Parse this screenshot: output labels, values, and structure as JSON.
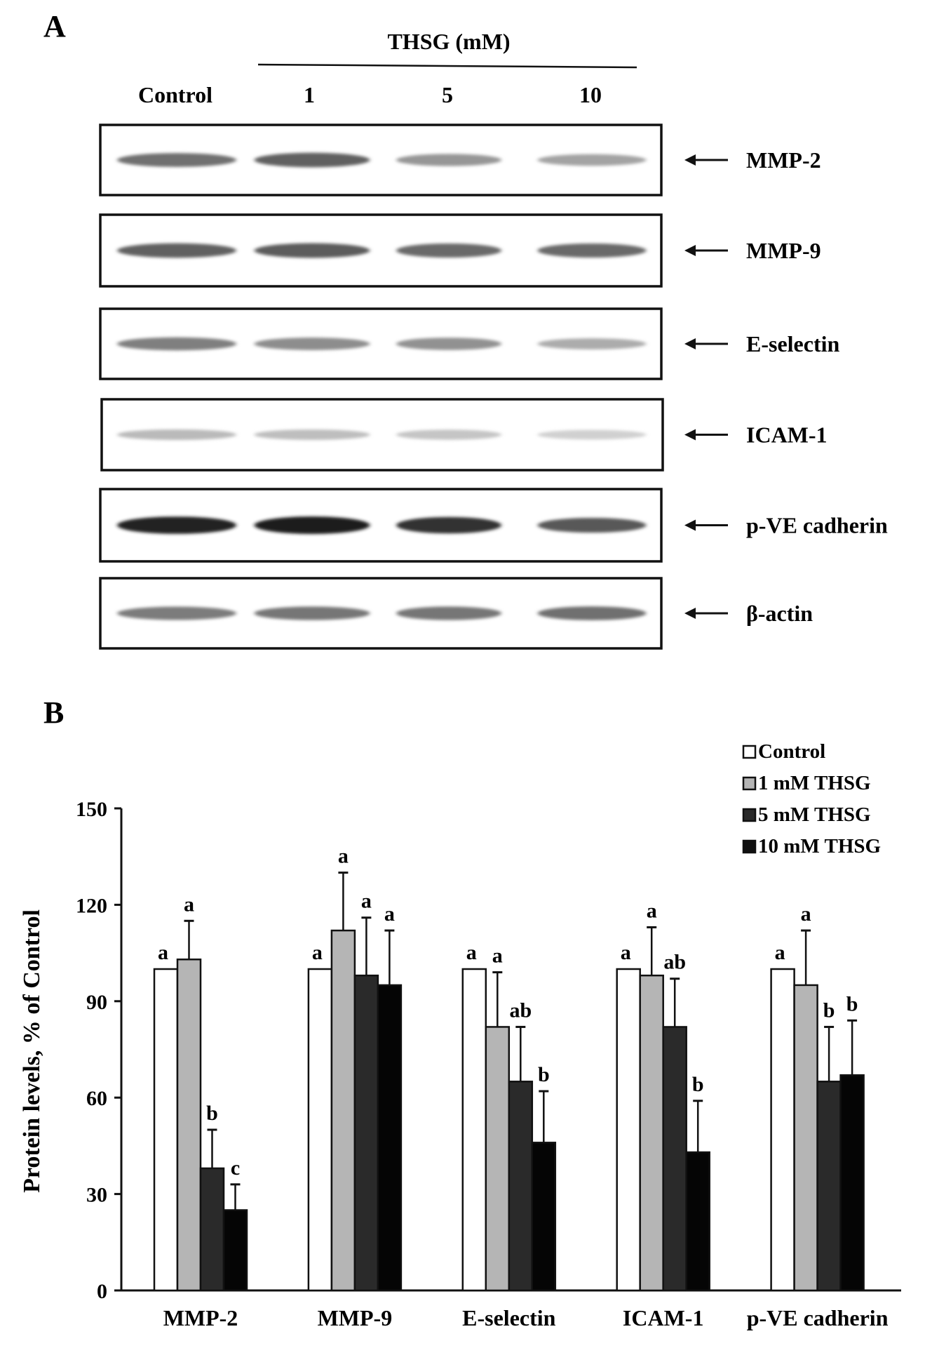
{
  "panel_a": {
    "label": "A",
    "treatment_label": "THSG (mM)",
    "lanes": [
      "Control",
      "1",
      "5",
      "10"
    ],
    "blots": [
      {
        "name": "MMP-2",
        "intensities": [
          0.55,
          0.62,
          0.38,
          0.32
        ]
      },
      {
        "name": "MMP-9",
        "intensities": [
          0.62,
          0.64,
          0.58,
          0.58
        ]
      },
      {
        "name": "E-selectin",
        "intensities": [
          0.48,
          0.42,
          0.4,
          0.28
        ]
      },
      {
        "name": "ICAM-1",
        "intensities": [
          0.22,
          0.2,
          0.17,
          0.12
        ]
      },
      {
        "name": "p-VE cadherin",
        "intensities": [
          0.9,
          0.92,
          0.82,
          0.65
        ]
      },
      {
        "name": "β-actin",
        "intensities": [
          0.5,
          0.52,
          0.52,
          0.55
        ]
      }
    ]
  },
  "panel_b": {
    "label": "B"
  },
  "chart_data": {
    "type": "bar",
    "title": "",
    "xlabel": "",
    "ylabel": "Protein levels, % of Control",
    "ylim": [
      0,
      150
    ],
    "yticks": [
      0,
      30,
      60,
      90,
      120,
      150
    ],
    "categories": [
      "MMP-2",
      "MMP-9",
      "E-selectin",
      "ICAM-1",
      "p-VE cadherin"
    ],
    "legend_position": "top-right",
    "grid": false,
    "series": [
      {
        "name": "Control",
        "color": "#ffffff",
        "values": [
          100,
          100,
          100,
          100,
          100
        ],
        "errors": [
          0,
          0,
          0,
          0,
          0
        ],
        "letters": [
          "a",
          "a",
          "a",
          "a",
          "a"
        ]
      },
      {
        "name": "1 mM THSG",
        "color": "#b5b5b5",
        "values": [
          103,
          112,
          82,
          98,
          95
        ],
        "errors": [
          12,
          18,
          17,
          15,
          17
        ],
        "letters": [
          "a",
          "a",
          "a",
          "a",
          "a"
        ]
      },
      {
        "name": "5 mM THSG",
        "color": "#2a2a2a",
        "values": [
          38,
          98,
          65,
          82,
          65
        ],
        "errors": [
          12,
          18,
          17,
          15,
          17
        ],
        "letters": [
          "b",
          "a",
          "ab",
          "ab",
          "b"
        ]
      },
      {
        "name": "10 mM THSG",
        "color": "#050505",
        "values": [
          25,
          95,
          46,
          43,
          67
        ],
        "errors": [
          8,
          17,
          16,
          16,
          17
        ],
        "letters": [
          "c",
          "a",
          "b",
          "b",
          "b"
        ]
      }
    ]
  }
}
